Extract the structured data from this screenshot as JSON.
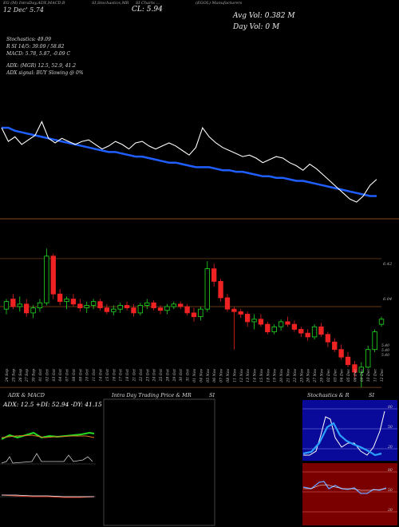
{
  "header": {
    "h1": "EG (M) IntraDay,ADX,MACD,B",
    "h2": "SI,Stochastics,MR",
    "h3": "SI Charts ...",
    "h4": "(EGOL) Manufacturers",
    "date_line": "12 Dec' 5.74",
    "cl": "CL: 5.94",
    "avg_vol": "Avg Vol: 0.382  M",
    "day_vol": "Day Vol: 0   M"
  },
  "indicators": {
    "stoch": "Stochastics: 49.09",
    "rsi": "R          SI 14/5: 39.09 / 58.82",
    "macd": "MACD: 5.78, 5.87, -0.09 C",
    "adx": "ADX:                  (MGR) 12.5, 52.9, 41.2",
    "adx_signal": "ADX  signal:                         BUY Slowing @ 0%"
  },
  "price_labels": {
    "p1": "6.42",
    "p2": "6.04",
    "p3": "5.40",
    "p4": "5.40",
    "p5": "5.40"
  },
  "panels": {
    "adx_title": "ADX  & MACD",
    "adx_values": "ADX: 12.5  +DI: 52.94  -DY: 41.15",
    "intra_title": "Intra  Day Trading Price  & MR",
    "intra_title2": "SI",
    "stoch_title": "Stochastics & R",
    "stoch_title2": "SI",
    "stoch_labels": [
      "80",
      "50",
      "20"
    ],
    "rsi_labels": [
      "80",
      "50",
      "20"
    ]
  },
  "chart_data": {
    "type": "candlestick",
    "dates": [
      "24 Sep",
      "25 Sep",
      "26 Sep",
      "27 Sep",
      "30 Sep",
      "01 Oct",
      "02 Oct",
      "03 Oct",
      "04 Oct",
      "07 Oct",
      "08 Oct",
      "09 Oct",
      "10 Oct",
      "11 Oct",
      "14 Oct",
      "15 Oct",
      "16 Oct",
      "17 Oct",
      "18 Oct",
      "21 Oct",
      "22 Oct",
      "23 Oct",
      "24 Oct",
      "25 Oct",
      "28 Oct",
      "29 Oct",
      "30 Oct",
      "31 Oct",
      "01 Nov",
      "04 Nov",
      "05 Nov",
      "06 Nov",
      "07 Nov",
      "08 Nov",
      "11 Nov",
      "12 Nov",
      "13 Nov",
      "14 Nov",
      "15 Nov",
      "18 Nov",
      "19 Nov",
      "20 Nov",
      "21 Nov",
      "22 Nov",
      "25 Nov",
      "26 Nov",
      "27 Nov",
      "29 Nov",
      "02 Dec",
      "03 Dec",
      "04 Dec",
      "05 Dec",
      "06 Dec",
      "09 Dec",
      "10 Dec",
      "11 Dec",
      "12 Dec"
    ],
    "ohlc": [
      [
        6.02,
        6.1,
        5.98,
        6.08
      ],
      [
        6.1,
        6.14,
        6.02,
        6.04
      ],
      [
        6.04,
        6.12,
        6.0,
        6.06
      ],
      [
        6.06,
        6.1,
        5.96,
        5.99
      ],
      [
        5.99,
        6.05,
        5.95,
        6.03
      ],
      [
        6.03,
        6.1,
        6.0,
        6.07
      ],
      [
        6.07,
        6.5,
        6.05,
        6.44
      ],
      [
        6.44,
        6.46,
        6.1,
        6.14
      ],
      [
        6.14,
        6.18,
        6.05,
        6.08
      ],
      [
        6.08,
        6.12,
        6.02,
        6.1
      ],
      [
        6.1,
        6.14,
        6.04,
        6.06
      ],
      [
        6.06,
        6.1,
        6.0,
        6.03
      ],
      [
        6.03,
        6.08,
        5.99,
        6.05
      ],
      [
        6.05,
        6.1,
        6.02,
        6.08
      ],
      [
        6.08,
        6.1,
        6.01,
        6.03
      ],
      [
        6.03,
        6.06,
        5.98,
        6.0
      ],
      [
        6.0,
        6.05,
        5.97,
        6.02
      ],
      [
        6.02,
        6.07,
        5.99,
        6.05
      ],
      [
        6.05,
        6.08,
        6.01,
        6.03
      ],
      [
        6.03,
        6.06,
        5.96,
        5.99
      ],
      [
        5.99,
        6.07,
        5.97,
        6.05
      ],
      [
        6.05,
        6.1,
        6.02,
        6.07
      ],
      [
        6.07,
        6.09,
        6.01,
        6.03
      ],
      [
        6.03,
        6.05,
        5.98,
        6.01
      ],
      [
        6.01,
        6.06,
        5.98,
        6.04
      ],
      [
        6.04,
        6.08,
        6.02,
        6.06
      ],
      [
        6.06,
        6.08,
        6.02,
        6.04
      ],
      [
        6.04,
        6.06,
        5.97,
        5.99
      ],
      [
        5.99,
        6.03,
        5.92,
        5.96
      ],
      [
        5.96,
        6.04,
        5.93,
        6.02
      ],
      [
        6.02,
        6.4,
        6.0,
        6.34
      ],
      [
        6.34,
        6.38,
        6.2,
        6.24
      ],
      [
        6.24,
        6.26,
        6.08,
        6.11
      ],
      [
        6.11,
        6.14,
        6.0,
        6.02
      ],
      [
        6.02,
        6.04,
        5.7,
        6.0
      ],
      [
        6.0,
        6.02,
        5.95,
        5.98
      ],
      [
        5.98,
        6.0,
        5.88,
        5.92
      ],
      [
        5.92,
        5.98,
        5.86,
        5.94
      ],
      [
        5.94,
        5.98,
        5.88,
        5.9
      ],
      [
        5.9,
        5.92,
        5.82,
        5.84
      ],
      [
        5.84,
        5.9,
        5.82,
        5.88
      ],
      [
        5.88,
        5.94,
        5.85,
        5.92
      ],
      [
        5.92,
        5.96,
        5.88,
        5.9
      ],
      [
        5.9,
        5.93,
        5.84,
        5.86
      ],
      [
        5.86,
        5.88,
        5.8,
        5.83
      ],
      [
        5.83,
        5.86,
        5.77,
        5.8
      ],
      [
        5.8,
        5.9,
        5.78,
        5.88
      ],
      [
        5.88,
        5.91,
        5.8,
        5.82
      ],
      [
        5.82,
        5.84,
        5.72,
        5.76
      ],
      [
        5.76,
        5.79,
        5.68,
        5.7
      ],
      [
        5.7,
        5.74,
        5.62,
        5.64
      ],
      [
        5.64,
        5.68,
        5.56,
        5.58
      ],
      [
        5.58,
        5.61,
        5.48,
        5.52
      ],
      [
        5.52,
        5.6,
        5.4,
        5.56
      ],
      [
        5.56,
        5.73,
        5.55,
        5.7
      ],
      [
        5.7,
        5.86,
        5.68,
        5.84
      ],
      [
        5.9,
        5.96,
        5.88,
        5.94
      ]
    ],
    "ma_values": [
      6.4,
      6.4,
      6.38,
      6.37,
      6.36,
      6.35,
      6.34,
      6.33,
      6.32,
      6.31,
      6.3,
      6.29,
      6.28,
      6.27,
      6.26,
      6.25,
      6.24,
      6.24,
      6.23,
      6.22,
      6.21,
      6.21,
      6.2,
      6.19,
      6.18,
      6.17,
      6.17,
      6.16,
      6.15,
      6.14,
      6.14,
      6.14,
      6.13,
      6.12,
      6.12,
      6.11,
      6.11,
      6.1,
      6.09,
      6.08,
      6.08,
      6.07,
      6.07,
      6.06,
      6.05,
      6.05,
      6.04,
      6.03,
      6.02,
      6.01,
      6.0,
      5.99,
      5.98,
      5.97,
      5.96,
      5.95,
      5.95
    ],
    "close_line": [
      6.4,
      6.31,
      6.34,
      6.29,
      6.32,
      6.35,
      6.44,
      6.33,
      6.3,
      6.33,
      6.31,
      6.29,
      6.31,
      6.32,
      6.29,
      6.26,
      6.28,
      6.31,
      6.29,
      6.26,
      6.3,
      6.31,
      6.28,
      6.26,
      6.28,
      6.3,
      6.28,
      6.25,
      6.22,
      6.27,
      6.4,
      6.34,
      6.3,
      6.27,
      6.25,
      6.23,
      6.21,
      6.22,
      6.2,
      6.17,
      6.19,
      6.21,
      6.2,
      6.17,
      6.15,
      6.12,
      6.16,
      6.13,
      6.09,
      6.05,
      6.01,
      5.97,
      5.93,
      5.91,
      5.95,
      6.02,
      6.06
    ]
  }
}
